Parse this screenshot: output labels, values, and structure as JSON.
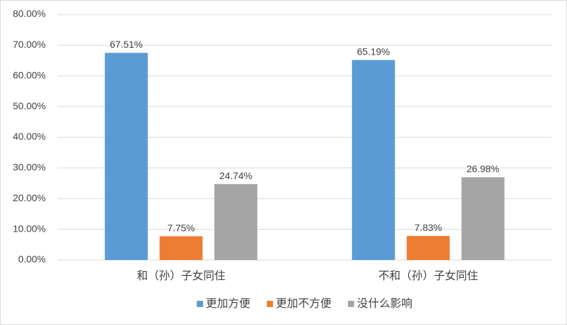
{
  "chart_data": {
    "type": "bar",
    "categories": [
      "和（孙）子女同住",
      "不和（孙）子女同住"
    ],
    "series": [
      {
        "name": "更加方便",
        "color": "#5b9bd5",
        "values": [
          67.51,
          65.19
        ],
        "value_labels": [
          "67.51%",
          "65.19%"
        ]
      },
      {
        "name": "更加不方便",
        "color": "#ed7d31",
        "values": [
          7.75,
          7.83
        ],
        "value_labels": [
          "7.75%",
          "7.83%"
        ]
      },
      {
        "name": "没什么影响",
        "color": "#a5a5a5",
        "values": [
          24.74,
          26.98
        ],
        "value_labels": [
          "24.74%",
          "26.98%"
        ]
      }
    ],
    "ylim": [
      0,
      80
    ],
    "yticks": [
      {
        "value": 0,
        "label": "0.00%"
      },
      {
        "value": 10,
        "label": "10.00%"
      },
      {
        "value": 20,
        "label": "20.00%"
      },
      {
        "value": 30,
        "label": "30.00%"
      },
      {
        "value": 40,
        "label": "40.00%"
      },
      {
        "value": 50,
        "label": "50.00%"
      },
      {
        "value": 60,
        "label": "60.00%"
      },
      {
        "value": 70,
        "label": "70.00%"
      },
      {
        "value": 80,
        "label": "80.00%"
      }
    ],
    "grid": true,
    "legend": "bottom"
  }
}
